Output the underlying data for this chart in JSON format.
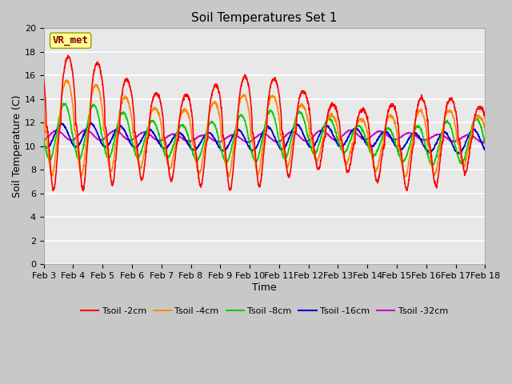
{
  "title": "Soil Temperatures Set 1",
  "xlabel": "Time",
  "ylabel": "Soil Temperature (C)",
  "ylim": [
    0,
    20
  ],
  "xlim": [
    0,
    15
  ],
  "fig_bg_color": "#c8c8c8",
  "plot_bg_color": "#e8e8e8",
  "annotation_text": "VR_met",
  "annotation_color": "#8b0000",
  "annotation_bg": "#ffff99",
  "colors": {
    "Tsoil -2cm": "#ff0000",
    "Tsoil -4cm": "#ff8800",
    "Tsoil -8cm": "#00cc00",
    "Tsoil -16cm": "#0000cc",
    "Tsoil -32cm": "#cc00cc"
  },
  "xtick_labels": [
    "Feb 3",
    "Feb 4",
    "Feb 5",
    "Feb 6",
    "Feb 7",
    "Feb 8",
    "Feb 9",
    "Feb 10",
    "Feb 11",
    "Feb 12",
    "Feb 13",
    "Feb 14",
    "Feb 15",
    "Feb 16",
    "Feb 17",
    "Feb 18"
  ],
  "ytick_labels": [
    "0",
    "2",
    "4",
    "6",
    "8",
    "10",
    "12",
    "14",
    "16",
    "18",
    "20"
  ],
  "lw": 1.2,
  "title_fontsize": 11,
  "tick_fontsize": 8,
  "ylabel_fontsize": 9,
  "xlabel_fontsize": 9,
  "legend_fontsize": 8
}
